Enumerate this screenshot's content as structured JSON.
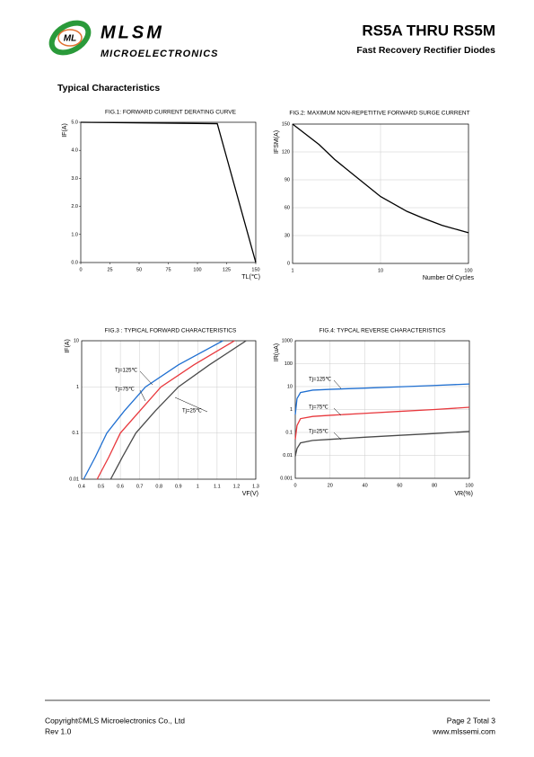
{
  "header": {
    "logo_mark": "ML",
    "brand": "MLSM",
    "brand_sub": "MICROELECTRONICS",
    "title": "RS5A THRU RS5M",
    "subtitle": "Fast Recovery Rectifier Diodes"
  },
  "section_title": "Typical  Characteristics",
  "chart_data": [
    {
      "type": "line",
      "title": "FIG.1: FORWARD CURRENT DERATING CURVE",
      "xlabel": "TL(℃)",
      "ylabel": "IF(A)",
      "x": [
        0,
        117,
        150
      ],
      "series": [
        {
          "color": "#000000",
          "values": [
            5.0,
            4.95,
            0
          ]
        }
      ],
      "xlim": [
        0,
        150
      ],
      "xticks": [
        0,
        25,
        50,
        75,
        100,
        125,
        150
      ],
      "ylim": [
        0,
        5
      ],
      "yticks": [
        {
          "value": 0,
          "label": "0.0"
        },
        {
          "value": 1,
          "label": "1.0"
        },
        {
          "value": 2,
          "label": "2.0"
        },
        {
          "value": 3,
          "label": "3.0"
        },
        {
          "value": 4,
          "label": "4.0"
        },
        {
          "value": 5,
          "label": "5.0"
        }
      ],
      "grid": false,
      "xlog": false,
      "ylog": false
    },
    {
      "type": "line",
      "title": "FIG.2:  MAXIMUM NON-REPETITIVE FORWARD SURGE CURRENT",
      "xlabel": "Number Of Cycles",
      "ylabel": "IFSM(A)",
      "x": [
        1,
        2,
        3,
        5,
        10,
        20,
        30,
        50,
        100
      ],
      "series": [
        {
          "color": "#000000",
          "values": [
            150,
            128,
            112,
            95,
            72,
            56,
            49,
            41,
            33
          ]
        }
      ],
      "xlim": [
        1,
        100
      ],
      "xticks": [
        1,
        10,
        100
      ],
      "ylim": [
        0,
        150
      ],
      "yticks": [
        0,
        30,
        60,
        90,
        120,
        150
      ],
      "grid": true,
      "xlog": true,
      "ylog": false
    },
    {
      "type": "line",
      "title": "FIG.3 : TYPICAL FORWARD CHARACTERISTICS",
      "xlabel": "VF(V)",
      "ylabel": "IF(A)",
      "series": [
        {
          "name": "Tj=125℃",
          "color": "#1f6fd1",
          "x": [
            0.41,
            0.47,
            0.53,
            0.62,
            0.73,
            0.9,
            1.13
          ],
          "values": [
            0.01,
            0.03,
            0.1,
            0.3,
            1,
            3,
            10
          ]
        },
        {
          "name": "Tj=75℃",
          "color": "#e8383d",
          "x": [
            0.48,
            0.54,
            0.6,
            0.7,
            0.81,
            0.98,
            1.19
          ],
          "values": [
            0.01,
            0.03,
            0.1,
            0.3,
            1,
            3,
            10
          ]
        },
        {
          "name": "Tj=25℃",
          "color": "#4a4a4a",
          "x": [
            0.55,
            0.61,
            0.68,
            0.78,
            0.9,
            1.06,
            1.25
          ],
          "values": [
            0.01,
            0.03,
            0.1,
            0.3,
            1,
            3,
            10
          ]
        }
      ],
      "xlim": [
        0.4,
        1.3
      ],
      "xticks": [
        0.4,
        0.5,
        0.6,
        0.7,
        0.8,
        0.9,
        1,
        1.1,
        1.2,
        1.3
      ],
      "ylim": [
        0.01,
        10
      ],
      "yticks": [
        0.01,
        0.1,
        1,
        10
      ],
      "grid": true,
      "xlog": false,
      "ylog": true
    },
    {
      "type": "line",
      "title": "FIG.4: TYPCAL REVERSE CHARACTERISTICS",
      "xlabel": "VR(%)",
      "ylabel": "IR(uA)",
      "x": [
        0,
        1,
        3,
        10,
        20,
        40,
        60,
        80,
        100
      ],
      "series": [
        {
          "name": "Tj=125℃",
          "color": "#1f6fd1",
          "values": [
            0.6,
            3,
            5.5,
            7,
            7.6,
            8.6,
            9.8,
            11.2,
            13
          ]
        },
        {
          "name": "Tj=75℃",
          "color": "#e8383d",
          "values": [
            0.05,
            0.2,
            0.4,
            0.5,
            0.56,
            0.68,
            0.83,
            1.0,
            1.25
          ]
        },
        {
          "name": "Tj=25℃",
          "color": "#4a4a4a",
          "values": [
            0.009,
            0.02,
            0.035,
            0.045,
            0.05,
            0.062,
            0.075,
            0.09,
            0.11
          ]
        }
      ],
      "xlim": [
        0,
        100
      ],
      "xticks": [
        0,
        20,
        40,
        60,
        80,
        100
      ],
      "ylim": [
        0.001,
        1000
      ],
      "yticks": [
        0.001,
        0.01,
        0.1,
        1,
        10,
        100,
        1000
      ],
      "grid": true,
      "xlog": false,
      "ylog": true
    }
  ],
  "footer": {
    "copyright": "Copyright©MLS Microelectronics Co., Ltd",
    "rev": "Rev 1.0",
    "page": "Page 2 Total 3",
    "website": "www.mlssemi.com"
  }
}
